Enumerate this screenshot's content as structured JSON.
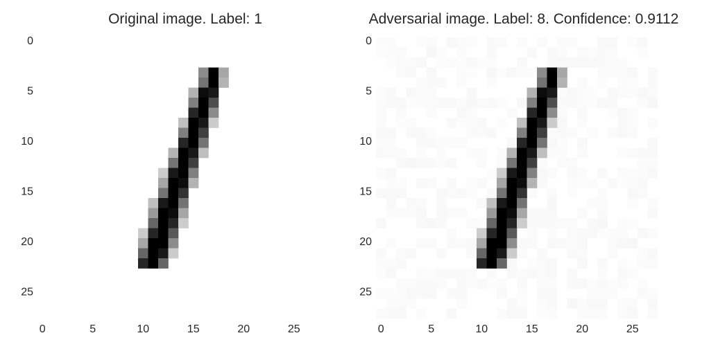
{
  "chart_data": [
    {
      "type": "heatmap",
      "title": "Original image. Label: 1",
      "xlabel": "",
      "ylabel": "",
      "colormap": "gray_r",
      "xlim": [
        -0.5,
        27.5
      ],
      "ylim": [
        27.5,
        -0.5
      ],
      "xticks": [
        0,
        5,
        10,
        15,
        20,
        25
      ],
      "yticks": [
        0,
        5,
        10,
        15,
        20,
        25
      ],
      "grid": false,
      "pixels": [
        {
          "row": 3,
          "values": {
            "16": 0.45,
            "17": 1.0,
            "18": 0.35
          }
        },
        {
          "row": 4,
          "values": {
            "16": 0.55,
            "17": 1.0,
            "18": 0.3
          }
        },
        {
          "row": 5,
          "values": {
            "15": 0.3,
            "16": 0.95,
            "17": 0.9
          }
        },
        {
          "row": 6,
          "values": {
            "15": 0.5,
            "16": 1.0,
            "17": 0.7
          }
        },
        {
          "row": 7,
          "values": {
            "15": 0.85,
            "16": 1.0,
            "17": 0.45
          }
        },
        {
          "row": 8,
          "values": {
            "14": 0.25,
            "15": 1.0,
            "16": 0.9,
            "17": 0.2
          }
        },
        {
          "row": 9,
          "values": {
            "14": 0.5,
            "15": 1.0,
            "16": 0.75
          }
        },
        {
          "row": 10,
          "values": {
            "14": 0.85,
            "15": 1.0,
            "16": 0.55
          }
        },
        {
          "row": 11,
          "values": {
            "13": 0.3,
            "14": 1.0,
            "15": 0.9,
            "16": 0.25
          }
        },
        {
          "row": 12,
          "values": {
            "13": 0.55,
            "14": 1.0,
            "15": 0.75
          }
        },
        {
          "row": 13,
          "values": {
            "12": 0.2,
            "13": 0.9,
            "14": 1.0,
            "15": 0.5
          }
        },
        {
          "row": 14,
          "values": {
            "12": 0.35,
            "13": 1.0,
            "14": 0.95,
            "15": 0.3
          }
        },
        {
          "row": 15,
          "values": {
            "12": 0.55,
            "13": 1.0,
            "14": 0.8
          }
        },
        {
          "row": 16,
          "values": {
            "11": 0.25,
            "12": 0.9,
            "13": 1.0,
            "14": 0.55
          }
        },
        {
          "row": 17,
          "values": {
            "11": 0.4,
            "12": 1.0,
            "13": 0.95,
            "14": 0.35
          }
        },
        {
          "row": 18,
          "values": {
            "11": 0.6,
            "12": 1.0,
            "13": 0.85,
            "14": 0.2
          }
        },
        {
          "row": 19,
          "values": {
            "10": 0.2,
            "11": 0.85,
            "12": 1.0,
            "13": 0.65
          }
        },
        {
          "row": 20,
          "values": {
            "10": 0.35,
            "11": 1.0,
            "12": 1.0,
            "13": 0.45
          }
        },
        {
          "row": 21,
          "values": {
            "10": 0.6,
            "11": 1.0,
            "12": 0.9,
            "13": 0.2
          }
        },
        {
          "row": 22,
          "values": {
            "10": 0.85,
            "11": 1.0,
            "12": 0.6
          }
        }
      ]
    },
    {
      "type": "heatmap",
      "title": "Adversarial image. Label: 8. Confidence: 0.9112",
      "xlabel": "",
      "ylabel": "",
      "colormap": "gray_r",
      "xlim": [
        -0.5,
        27.5
      ],
      "ylim": [
        27.5,
        -0.5
      ],
      "xticks": [
        0,
        5,
        10,
        15,
        20,
        25
      ],
      "yticks": [
        0,
        5,
        10,
        15,
        20,
        25
      ],
      "grid": false,
      "background_noise": 0.03,
      "pixels": [
        {
          "row": 3,
          "values": {
            "16": 0.45,
            "17": 1.0,
            "18": 0.35
          }
        },
        {
          "row": 4,
          "values": {
            "16": 0.55,
            "17": 1.0,
            "18": 0.3
          }
        },
        {
          "row": 5,
          "values": {
            "15": 0.3,
            "16": 0.95,
            "17": 0.9
          }
        },
        {
          "row": 6,
          "values": {
            "15": 0.5,
            "16": 1.0,
            "17": 0.7
          }
        },
        {
          "row": 7,
          "values": {
            "15": 0.85,
            "16": 1.0,
            "17": 0.45
          }
        },
        {
          "row": 8,
          "values": {
            "14": 0.25,
            "15": 1.0,
            "16": 0.9,
            "17": 0.2
          }
        },
        {
          "row": 9,
          "values": {
            "14": 0.5,
            "15": 1.0,
            "16": 0.75
          }
        },
        {
          "row": 10,
          "values": {
            "14": 0.85,
            "15": 1.0,
            "16": 0.55
          }
        },
        {
          "row": 11,
          "values": {
            "13": 0.3,
            "14": 1.0,
            "15": 0.9,
            "16": 0.25
          }
        },
        {
          "row": 12,
          "values": {
            "13": 0.55,
            "14": 1.0,
            "15": 0.75
          }
        },
        {
          "row": 13,
          "values": {
            "12": 0.2,
            "13": 0.9,
            "14": 1.0,
            "15": 0.5
          }
        },
        {
          "row": 14,
          "values": {
            "12": 0.35,
            "13": 1.0,
            "14": 0.95,
            "15": 0.3
          }
        },
        {
          "row": 15,
          "values": {
            "12": 0.55,
            "13": 1.0,
            "14": 0.8
          }
        },
        {
          "row": 16,
          "values": {
            "11": 0.25,
            "12": 0.9,
            "13": 1.0,
            "14": 0.55
          }
        },
        {
          "row": 17,
          "values": {
            "11": 0.4,
            "12": 1.0,
            "13": 0.95,
            "14": 0.35
          }
        },
        {
          "row": 18,
          "values": {
            "11": 0.6,
            "12": 1.0,
            "13": 0.85,
            "14": 0.2
          }
        },
        {
          "row": 19,
          "values": {
            "10": 0.2,
            "11": 0.85,
            "12": 1.0,
            "13": 0.65
          }
        },
        {
          "row": 20,
          "values": {
            "10": 0.35,
            "11": 1.0,
            "12": 1.0,
            "13": 0.45
          }
        },
        {
          "row": 21,
          "values": {
            "10": 0.6,
            "11": 1.0,
            "12": 0.9,
            "13": 0.2
          }
        },
        {
          "row": 22,
          "values": {
            "10": 0.85,
            "11": 1.0,
            "12": 0.6
          }
        }
      ]
    }
  ]
}
